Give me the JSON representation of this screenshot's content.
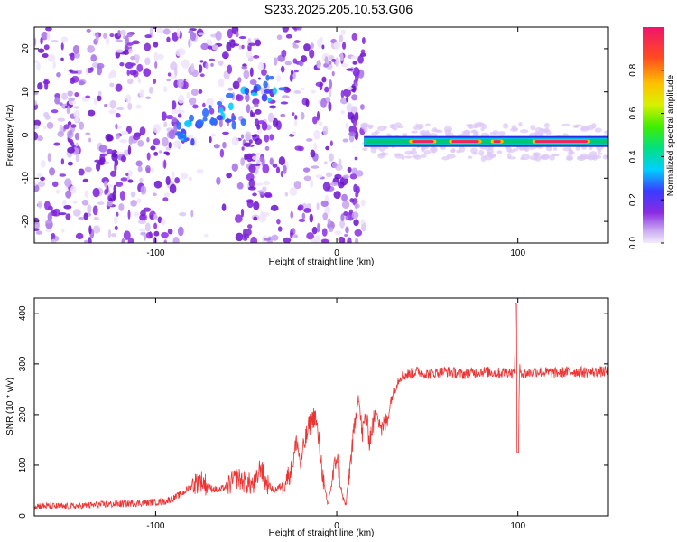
{
  "title": "S233.2025.205.10.53.G06",
  "colors": {
    "snr_line": "#ee3333",
    "spectrogram_ridge": "#00c878",
    "spectrogram_core": "#ee2266",
    "scatter": "#8a2be2"
  },
  "chart_data": [
    {
      "type": "heatmap",
      "xlabel": "Height of straight line (km)",
      "ylabel": "Frequency (Hz)",
      "xlim": [
        -167,
        150
      ],
      "ylim": [
        -25,
        25
      ],
      "x_ticks": [
        -100,
        0,
        100
      ],
      "y_ticks": [
        -20,
        -10,
        0,
        10,
        20
      ],
      "colorbar": {
        "label": "Normalized spectral amplitude",
        "range": [
          0.0,
          1.0
        ],
        "ticks": [
          "0.0",
          "0.2",
          "0.4",
          "0.6",
          "0.8"
        ]
      },
      "band": {
        "x_start": 15,
        "x_end": 150,
        "frequency": -1.5
      },
      "scatter_region": {
        "x_start": -167,
        "x_end": 15
      }
    },
    {
      "type": "line",
      "xlabel": "Height of straight line (km)",
      "ylabel": "SNR (10 * v/v)",
      "xlim": [
        -167,
        150
      ],
      "ylim": [
        0,
        430
      ],
      "x_ticks": [
        -100,
        0,
        100
      ],
      "y_ticks": [
        0,
        100,
        200,
        300,
        400
      ],
      "series": [
        {
          "x": [
            -167,
            -150,
            -130,
            -110,
            -95,
            -90,
            -85,
            -80,
            -75,
            -70,
            -65,
            -60,
            -55,
            -50,
            -45,
            -42,
            -40,
            -35,
            -30,
            -25,
            -22,
            -20,
            -18,
            -15,
            -12,
            -10,
            -7,
            -5,
            -3,
            0,
            3,
            5,
            8,
            10,
            12,
            14,
            16,
            18,
            20,
            22,
            25,
            28,
            30,
            33,
            35,
            40,
            45,
            50,
            60,
            70,
            80,
            90,
            95,
            98,
            99,
            100,
            101,
            103,
            110,
            120,
            130,
            140,
            150
          ],
          "y": [
            20,
            18,
            22,
            25,
            28,
            35,
            45,
            60,
            70,
            55,
            50,
            60,
            75,
            65,
            60,
            100,
            70,
            50,
            60,
            90,
            150,
            100,
            140,
            180,
            200,
            150,
            60,
            20,
            60,
            120,
            40,
            20,
            120,
            180,
            240,
            160,
            200,
            150,
            180,
            210,
            170,
            190,
            230,
            260,
            275,
            280,
            285,
            280,
            285,
            280,
            285,
            282,
            285,
            280,
            420,
            125,
            290,
            280,
            285,
            282,
            285,
            283,
            285
          ]
        }
      ]
    }
  ]
}
